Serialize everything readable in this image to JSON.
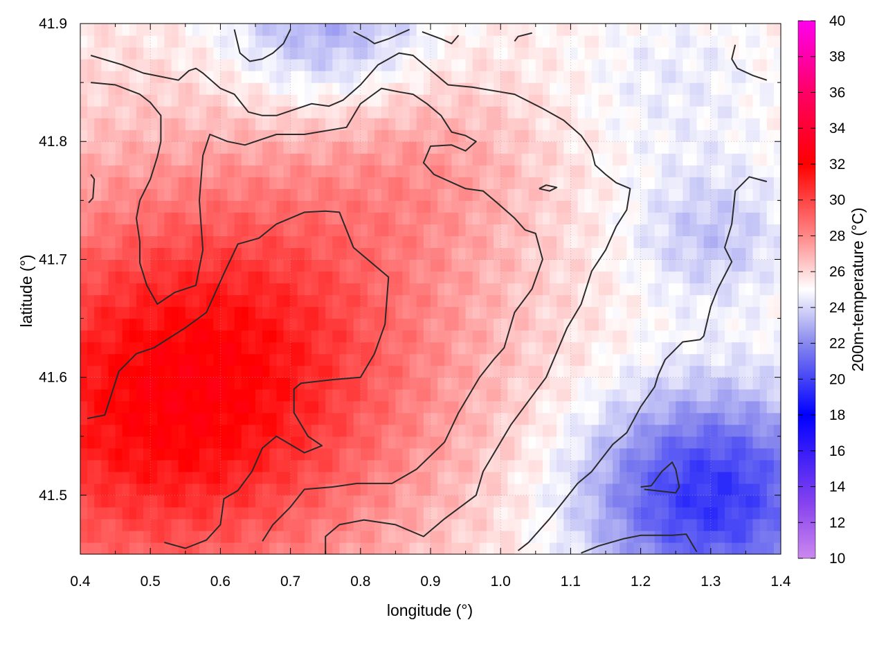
{
  "chart_data": {
    "type": "heatmap",
    "title": "",
    "xlabel": "longitude (°)",
    "ylabel": "latitude (°)",
    "colorbar_label": "200m-temperature (°C)",
    "xlim": [
      0.4,
      1.4
    ],
    "ylim": [
      41.45,
      41.9
    ],
    "x_ticks": [
      "0.4",
      "0.5",
      "0.6",
      "0.7",
      "0.8",
      "0.9",
      "1.0",
      "1.1",
      "1.2",
      "1.3",
      "1.4"
    ],
    "y_ticks": [
      "41.5",
      "41.6",
      "41.7",
      "41.8",
      "41.9"
    ],
    "colorbar_range": [
      10,
      40
    ],
    "colorbar_ticks": [
      "10",
      "12",
      "14",
      "16",
      "18",
      "20",
      "22",
      "24",
      "26",
      "28",
      "30",
      "32",
      "34",
      "36",
      "38",
      "40"
    ],
    "colormap": [
      {
        "value": 10,
        "color": "#cc88ee"
      },
      {
        "value": 13,
        "color": "#8844ee"
      },
      {
        "value": 18,
        "color": "#0000ff"
      },
      {
        "value": 22,
        "color": "#8888ee"
      },
      {
        "value": 25,
        "color": "#ffffff"
      },
      {
        "value": 28,
        "color": "#ff8888"
      },
      {
        "value": 32,
        "color": "#ff0000"
      },
      {
        "value": 36,
        "color": "#ff0066"
      },
      {
        "value": 40,
        "color": "#ff00ee"
      }
    ],
    "grid": true,
    "field": {
      "description_values": "approximate 200m-temperature field sampled on a regular lon/lat grid",
      "hot_center": {
        "lon": 0.52,
        "lat": 41.57,
        "value": 31.5
      },
      "cold_center": {
        "lon": 1.3,
        "lat": 41.5,
        "value": 19.5
      },
      "north_cold": {
        "lon": 0.75,
        "lat": 41.9,
        "value": 22.5
      }
    },
    "contours": [
      {
        "name": "outer",
        "points": [
          [
            0.415,
            41.873
          ],
          [
            0.46,
            41.865
          ],
          [
            0.49,
            41.858
          ],
          [
            0.54,
            41.852
          ],
          [
            0.555,
            41.86
          ],
          [
            0.565,
            41.862
          ],
          [
            0.575,
            41.858
          ],
          [
            0.6,
            41.845
          ],
          [
            0.62,
            41.84
          ],
          [
            0.64,
            41.825
          ],
          [
            0.66,
            41.822
          ],
          [
            0.68,
            41.822
          ],
          [
            0.71,
            41.828
          ],
          [
            0.73,
            41.832
          ],
          [
            0.755,
            41.83
          ],
          [
            0.775,
            41.835
          ],
          [
            0.8,
            41.848
          ],
          [
            0.825,
            41.865
          ],
          [
            0.855,
            41.875
          ],
          [
            0.875,
            41.873
          ],
          [
            0.905,
            41.858
          ],
          [
            0.925,
            41.848
          ],
          [
            0.96,
            41.846
          ],
          [
            1.0,
            41.842
          ],
          [
            1.02,
            41.84
          ],
          [
            1.06,
            41.828
          ],
          [
            1.09,
            41.818
          ],
          [
            1.115,
            41.805
          ],
          [
            1.13,
            41.792
          ],
          [
            1.135,
            41.78
          ],
          [
            1.15,
            41.772
          ],
          [
            1.165,
            41.765
          ],
          [
            1.185,
            41.76
          ],
          [
            1.18,
            41.742
          ],
          [
            1.165,
            41.728
          ],
          [
            1.15,
            41.708
          ],
          [
            1.13,
            41.69
          ],
          [
            1.115,
            41.662
          ],
          [
            1.095,
            41.642
          ],
          [
            1.065,
            41.6
          ],
          [
            1.04,
            41.58
          ],
          [
            1.015,
            41.56
          ],
          [
            1.0,
            41.545
          ],
          [
            0.975,
            41.52
          ],
          [
            0.965,
            41.5
          ],
          [
            0.92,
            41.48
          ],
          [
            0.89,
            41.465
          ],
          [
            0.85,
            41.475
          ],
          [
            0.805,
            41.479
          ],
          [
            0.77,
            41.475
          ],
          [
            0.75,
            41.465
          ],
          [
            0.75,
            41.45
          ]
        ]
      },
      {
        "name": "middle",
        "points": [
          [
            0.415,
            41.85
          ],
          [
            0.45,
            41.848
          ],
          [
            0.485,
            41.84
          ],
          [
            0.5,
            41.833
          ],
          [
            0.515,
            41.822
          ],
          [
            0.515,
            41.8
          ],
          [
            0.51,
            41.787
          ],
          [
            0.5,
            41.768
          ],
          [
            0.485,
            41.75
          ],
          [
            0.48,
            41.735
          ],
          [
            0.485,
            41.715
          ],
          [
            0.485,
            41.697
          ],
          [
            0.495,
            41.678
          ],
          [
            0.51,
            41.662
          ],
          [
            0.535,
            41.672
          ],
          [
            0.565,
            41.678
          ],
          [
            0.575,
            41.708
          ],
          [
            0.57,
            41.75
          ],
          [
            0.575,
            41.788
          ],
          [
            0.585,
            41.806
          ],
          [
            0.61,
            41.8
          ],
          [
            0.635,
            41.797
          ],
          [
            0.68,
            41.806
          ],
          [
            0.72,
            41.806
          ],
          [
            0.78,
            41.812
          ],
          [
            0.8,
            41.832
          ],
          [
            0.83,
            41.845
          ],
          [
            0.855,
            41.842
          ],
          [
            0.875,
            41.84
          ],
          [
            0.895,
            41.832
          ],
          [
            0.915,
            41.822
          ],
          [
            0.93,
            41.808
          ],
          [
            0.95,
            41.805
          ],
          [
            0.965,
            41.8
          ],
          [
            0.95,
            41.792
          ],
          [
            0.93,
            41.797
          ],
          [
            0.9,
            41.796
          ],
          [
            0.89,
            41.782
          ],
          [
            0.905,
            41.772
          ],
          [
            0.92,
            41.768
          ],
          [
            0.95,
            41.76
          ],
          [
            0.975,
            41.758
          ],
          [
            0.995,
            41.748
          ],
          [
            1.02,
            41.735
          ],
          [
            1.035,
            41.725
          ],
          [
            1.05,
            41.722
          ],
          [
            1.06,
            41.7
          ],
          [
            1.045,
            41.675
          ],
          [
            1.02,
            41.655
          ],
          [
            1.005,
            41.625
          ],
          [
            0.99,
            41.615
          ],
          [
            0.97,
            41.6
          ],
          [
            0.94,
            41.57
          ],
          [
            0.92,
            41.545
          ],
          [
            0.88,
            41.522
          ],
          [
            0.845,
            41.51
          ],
          [
            0.795,
            41.51
          ],
          [
            0.76,
            41.507
          ],
          [
            0.72,
            41.505
          ],
          [
            0.7,
            41.49
          ],
          [
            0.675,
            41.475
          ],
          [
            0.66,
            41.461
          ]
        ]
      },
      {
        "name": "inner",
        "points": [
          [
            0.41,
            41.565
          ],
          [
            0.435,
            41.568
          ],
          [
            0.455,
            41.605
          ],
          [
            0.48,
            41.62
          ],
          [
            0.505,
            41.625
          ],
          [
            0.55,
            41.642
          ],
          [
            0.58,
            41.655
          ],
          [
            0.605,
            41.688
          ],
          [
            0.625,
            41.713
          ],
          [
            0.655,
            41.718
          ],
          [
            0.68,
            41.73
          ],
          [
            0.72,
            41.74
          ],
          [
            0.75,
            41.741
          ],
          [
            0.77,
            41.74
          ],
          [
            0.79,
            41.71
          ],
          [
            0.83,
            41.69
          ],
          [
            0.84,
            41.685
          ],
          [
            0.835,
            41.645
          ],
          [
            0.82,
            41.62
          ],
          [
            0.8,
            41.6
          ],
          [
            0.76,
            41.598
          ],
          [
            0.715,
            41.595
          ],
          [
            0.705,
            41.59
          ],
          [
            0.705,
            41.57
          ],
          [
            0.725,
            41.55
          ],
          [
            0.745,
            41.542
          ],
          [
            0.72,
            41.536
          ],
          [
            0.68,
            41.55
          ],
          [
            0.66,
            41.54
          ],
          [
            0.645,
            41.52
          ],
          [
            0.625,
            41.504
          ],
          [
            0.605,
            41.497
          ],
          [
            0.6,
            41.475
          ],
          [
            0.58,
            41.462
          ],
          [
            0.55,
            41.455
          ],
          [
            0.52,
            41.46
          ]
        ]
      },
      {
        "name": "north-left-loop",
        "points": [
          [
            0.62,
            41.895
          ],
          [
            0.628,
            41.875
          ],
          [
            0.642,
            41.868
          ],
          [
            0.66,
            41.87
          ],
          [
            0.675,
            41.875
          ],
          [
            0.69,
            41.883
          ],
          [
            0.7,
            41.895
          ]
        ]
      },
      {
        "name": "north-dash-1",
        "points": [
          [
            0.79,
            41.893
          ],
          [
            0.81,
            41.887
          ],
          [
            0.82,
            41.883
          ],
          [
            0.84,
            41.887
          ],
          [
            0.87,
            41.895
          ]
        ]
      },
      {
        "name": "north-dash-2",
        "points": [
          [
            0.888,
            41.893
          ],
          [
            0.915,
            41.887
          ],
          [
            0.93,
            41.883
          ],
          [
            0.94,
            41.89
          ]
        ]
      },
      {
        "name": "north-dash-3",
        "points": [
          [
            1.02,
            41.885
          ],
          [
            1.025,
            41.889
          ],
          [
            1.045,
            41.892
          ]
        ]
      },
      {
        "name": "north-east",
        "points": [
          [
            1.335,
            41.882
          ],
          [
            1.33,
            41.87
          ],
          [
            1.338,
            41.862
          ],
          [
            1.36,
            41.856
          ],
          [
            1.38,
            41.852
          ]
        ]
      },
      {
        "name": "east-boundary",
        "points": [
          [
            1.38,
            41.766
          ],
          [
            1.355,
            41.77
          ],
          [
            1.335,
            41.758
          ],
          [
            1.33,
            41.73
          ],
          [
            1.32,
            41.71
          ],
          [
            1.33,
            41.698
          ],
          [
            1.31,
            41.675
          ],
          [
            1.3,
            41.66
          ],
          [
            1.29,
            41.635
          ],
          [
            1.285,
            41.632
          ],
          [
            1.26,
            41.63
          ],
          [
            1.235,
            41.615
          ],
          [
            1.225,
            41.602
          ],
          [
            1.22,
            41.592
          ],
          [
            1.2,
            41.575
          ],
          [
            1.18,
            41.553
          ],
          [
            1.16,
            41.543
          ],
          [
            1.13,
            41.52
          ],
          [
            1.11,
            41.51
          ],
          [
            1.09,
            41.495
          ],
          [
            1.07,
            41.48
          ],
          [
            1.04,
            41.46
          ],
          [
            1.025,
            41.453
          ]
        ]
      },
      {
        "name": "lake-loop",
        "points": [
          [
            1.205,
            41.505
          ],
          [
            1.25,
            41.502
          ],
          [
            1.255,
            41.507
          ],
          [
            1.25,
            41.522
          ],
          [
            1.245,
            41.528
          ],
          [
            1.23,
            41.52
          ],
          [
            1.215,
            41.508
          ],
          [
            1.2,
            41.507
          ]
        ]
      },
      {
        "name": "south-east",
        "points": [
          [
            1.115,
            41.451
          ],
          [
            1.14,
            41.457
          ],
          [
            1.175,
            41.463
          ],
          [
            1.2,
            41.466
          ],
          [
            1.245,
            41.466
          ],
          [
            1.265,
            41.467
          ],
          [
            1.28,
            41.452
          ]
        ]
      },
      {
        "name": "west-edge",
        "points": [
          [
            0.415,
            41.772
          ],
          [
            0.42,
            41.768
          ],
          [
            0.418,
            41.752
          ],
          [
            0.412,
            41.748
          ]
        ]
      },
      {
        "name": "small-loop",
        "points": [
          [
            1.055,
            41.76
          ],
          [
            1.065,
            41.763
          ],
          [
            1.08,
            41.761
          ],
          [
            1.07,
            41.758
          ],
          [
            1.055,
            41.76
          ]
        ]
      }
    ]
  }
}
